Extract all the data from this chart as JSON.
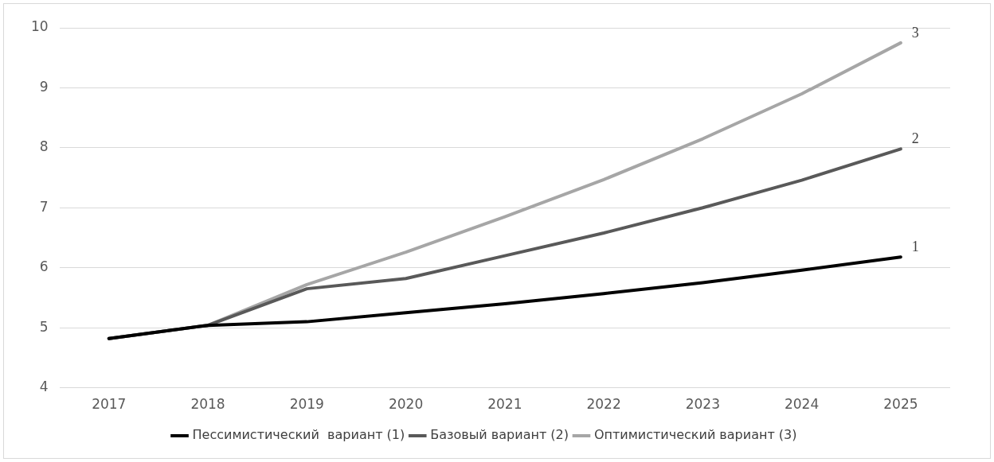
{
  "chart_data": {
    "type": "line",
    "categories": [
      "2017",
      "2018",
      "2019",
      "2020",
      "2021",
      "2022",
      "2023",
      "2024",
      "2025"
    ],
    "series": [
      {
        "name": "Пессимистический  вариант (1)",
        "color": "#000000",
        "values": [
          4.82,
          5.04,
          5.1,
          5.25,
          5.4,
          5.57,
          5.75,
          5.96,
          6.18
        ]
      },
      {
        "name": "Базовый вариант (2)",
        "color": "#595959",
        "values": [
          4.82,
          5.04,
          5.65,
          5.82,
          6.2,
          6.58,
          7.0,
          7.46,
          7.98
        ]
      },
      {
        "name": "Оптимистический вариант (3)",
        "color": "#a6a6a6",
        "values": [
          4.82,
          5.04,
          5.72,
          6.26,
          6.85,
          7.47,
          8.15,
          8.9,
          9.75
        ]
      }
    ],
    "ylim": [
      4,
      10
    ],
    "yticks": [
      4,
      5,
      6,
      7,
      8,
      9,
      10
    ],
    "grid": "y",
    "legend": "bottom",
    "marker": "none",
    "line_style": "solid",
    "annotations": [
      {
        "text": "1",
        "x": "2025",
        "y": 6.18
      },
      {
        "text": "2",
        "x": "2025",
        "y": 7.98
      },
      {
        "text": "3",
        "x": "2025",
        "y": 9.75
      }
    ]
  }
}
